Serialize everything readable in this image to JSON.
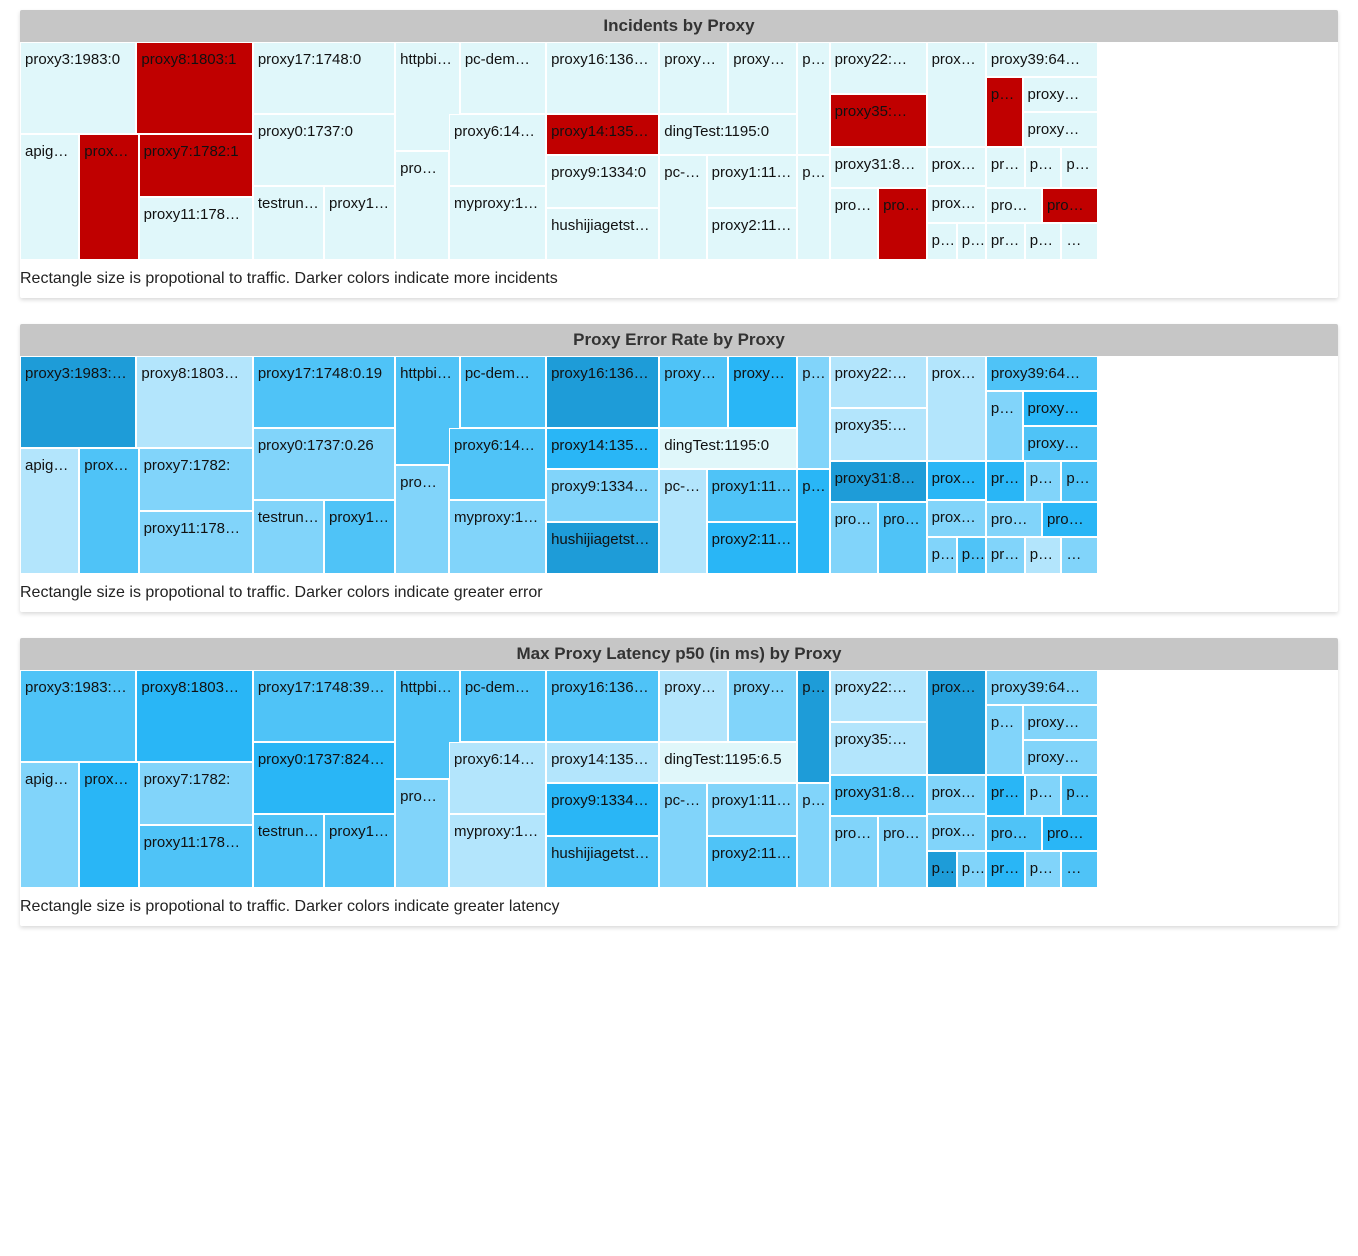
{
  "layoutNodes": [
    {
      "id": "proxy3",
      "l": 0,
      "t": 0,
      "w": 0.108,
      "h": 0.42,
      "text": "proxy3:1983:"
    },
    {
      "id": "proxy8",
      "l": 0.108,
      "t": 0,
      "w": 0.108,
      "h": 0.42,
      "text": "proxy8:1803:"
    },
    {
      "id": "apige",
      "l": 0,
      "t": 0.42,
      "w": 0.055,
      "h": 0.58,
      "text": "apige…"
    },
    {
      "id": "proxyA",
      "l": 0.055,
      "t": 0.42,
      "w": 0.055,
      "h": 0.58,
      "text": "proxy…"
    },
    {
      "id": "proxy7",
      "l": 0.11,
      "t": 0.42,
      "w": 0.106,
      "h": 0.29,
      "text": "proxy7:1782:"
    },
    {
      "id": "proxy11",
      "l": 0.11,
      "t": 0.71,
      "w": 0.106,
      "h": 0.29,
      "text": "proxy11:178…"
    },
    {
      "id": "proxy17",
      "l": 0.216,
      "t": 0,
      "w": 0.132,
      "h": 0.33,
      "text": "proxy17:1748:"
    },
    {
      "id": "proxy0",
      "l": 0.216,
      "t": 0.33,
      "w": 0.132,
      "h": 0.33,
      "text": "proxy0:1737:"
    },
    {
      "id": "testrun",
      "l": 0.216,
      "t": 0.66,
      "w": 0.066,
      "h": 0.34,
      "text": "testrun:…"
    },
    {
      "id": "proxy1a",
      "l": 0.282,
      "t": 0.66,
      "w": 0.066,
      "h": 0.34,
      "text": "proxy1…"
    },
    {
      "id": "httpbin",
      "l": 0.348,
      "t": 0,
      "w": 0.06,
      "h": 0.5,
      "text": "httpbin:1…"
    },
    {
      "id": "proxB",
      "l": 0.348,
      "t": 0.5,
      "w": 0.05,
      "h": 0.5,
      "text": "prox…"
    },
    {
      "id": "pcdem",
      "l": 0.408,
      "t": 0,
      "w": 0.08,
      "h": 0.33,
      "text": "pc-dem…"
    },
    {
      "id": "proxy6",
      "l": 0.398,
      "t": 0.33,
      "w": 0.09,
      "h": 0.33,
      "text": "proxy6:145…"
    },
    {
      "id": "myproxy",
      "l": 0.398,
      "t": 0.66,
      "w": 0.09,
      "h": 0.34,
      "text": "myproxy:14…"
    },
    {
      "id": "proxy16",
      "l": 0.488,
      "t": 0,
      "w": 0.105,
      "h": 0.33,
      "text": "proxy16:136…"
    },
    {
      "id": "proxy14",
      "l": 0.488,
      "t": 0.33,
      "w": 0.105,
      "h": 0.19,
      "text": "proxy14:135…"
    },
    {
      "id": "proxy9",
      "l": 0.488,
      "t": 0.52,
      "w": 0.105,
      "h": 0.24,
      "text": "proxy9:1334:"
    },
    {
      "id": "hushi",
      "l": 0.488,
      "t": 0.76,
      "w": 0.105,
      "h": 0.24,
      "text": "hushijiagetst…"
    },
    {
      "id": "proxy1b",
      "l": 0.593,
      "t": 0,
      "w": 0.064,
      "h": 0.33,
      "text": "proxy1…"
    },
    {
      "id": "proxy1c",
      "l": 0.657,
      "t": 0,
      "w": 0.064,
      "h": 0.33,
      "text": "proxy1…"
    },
    {
      "id": "dingTest",
      "l": 0.593,
      "t": 0.33,
      "w": 0.128,
      "h": 0.19,
      "text": "dingTest:1195:0"
    },
    {
      "id": "pcd",
      "l": 0.593,
      "t": 0.52,
      "w": 0.044,
      "h": 0.48,
      "text": "pc-d…"
    },
    {
      "id": "proxy1d",
      "l": 0.637,
      "t": 0.52,
      "w": 0.084,
      "h": 0.24,
      "text": "proxy1:11…"
    },
    {
      "id": "proxy2",
      "l": 0.637,
      "t": 0.76,
      "w": 0.084,
      "h": 0.24,
      "text": "proxy2:11…"
    },
    {
      "id": "proM",
      "l": 0.721,
      "t": 0,
      "w": 0.03,
      "h": 0.52,
      "text": "pro…"
    },
    {
      "id": "prN",
      "l": 0.721,
      "t": 0.52,
      "w": 0.03,
      "h": 0.48,
      "text": "pr…"
    },
    {
      "id": "proxy22",
      "l": 0.751,
      "t": 0,
      "w": 0.09,
      "h": 0.24,
      "text": "proxy22:…"
    },
    {
      "id": "proxy35",
      "l": 0.751,
      "t": 0.24,
      "w": 0.09,
      "h": 0.24,
      "text": "proxy35:…"
    },
    {
      "id": "proxy31",
      "l": 0.751,
      "t": 0.48,
      "w": 0.09,
      "h": 0.19,
      "text": "proxy31:8…"
    },
    {
      "id": "proxE",
      "l": 0.751,
      "t": 0.67,
      "w": 0.045,
      "h": 0.33,
      "text": "prox…"
    },
    {
      "id": "proF",
      "l": 0.796,
      "t": 0.67,
      "w": 0.045,
      "h": 0.33,
      "text": "pro…"
    },
    {
      "id": "proxyC",
      "l": 0.841,
      "t": 0,
      "w": 0.055,
      "h": 0.48,
      "text": "proxy…"
    },
    {
      "id": "proxy2b",
      "l": 0.841,
      "t": 0.48,
      "w": 0.055,
      "h": 0.18,
      "text": "proxy2…"
    },
    {
      "id": "proxy3b",
      "l": 0.841,
      "t": 0.66,
      "w": 0.055,
      "h": 0.17,
      "text": "proxy3…"
    },
    {
      "id": "proG",
      "l": 0.841,
      "t": 0.83,
      "w": 0.028,
      "h": 0.17,
      "text": "pro…"
    },
    {
      "id": "proH",
      "l": 0.869,
      "t": 0.83,
      "w": 0.027,
      "h": 0.17,
      "text": "pro…"
    },
    {
      "id": "proxy39",
      "l": 0.896,
      "t": 0,
      "w": 0.104,
      "h": 0.16,
      "text": "proxy39:64…"
    },
    {
      "id": "prI",
      "l": 0.896,
      "t": 0.16,
      "w": 0.034,
      "h": 0.32,
      "text": "pr…"
    },
    {
      "id": "proxyD",
      "l": 0.93,
      "t": 0.16,
      "w": 0.07,
      "h": 0.16,
      "text": "proxy…"
    },
    {
      "id": "proxyE",
      "l": 0.93,
      "t": 0.32,
      "w": 0.07,
      "h": 0.16,
      "text": "proxy…"
    },
    {
      "id": "proJ",
      "l": 0.896,
      "t": 0.48,
      "w": 0.036,
      "h": 0.19,
      "text": "pro…"
    },
    {
      "id": "proK",
      "l": 0.932,
      "t": 0.48,
      "w": 0.034,
      "h": 0.19,
      "text": "pro…"
    },
    {
      "id": "proL",
      "l": 0.966,
      "t": 0.48,
      "w": 0.034,
      "h": 0.19,
      "text": "pro…"
    },
    {
      "id": "proP",
      "l": 0.896,
      "t": 0.67,
      "w": 0.052,
      "h": 0.16,
      "text": "pro…"
    },
    {
      "id": "proQ",
      "l": 0.948,
      "t": 0.67,
      "w": 0.052,
      "h": 0.16,
      "text": "pro…"
    },
    {
      "id": "proR",
      "l": 0.896,
      "t": 0.83,
      "w": 0.036,
      "h": 0.17,
      "text": "pro…"
    },
    {
      "id": "pS",
      "l": 0.932,
      "t": 0.83,
      "w": 0.034,
      "h": 0.17,
      "text": "p. …"
    },
    {
      "id": "pT",
      "l": 0.966,
      "t": 0.83,
      "w": 0.034,
      "h": 0.17,
      "text": "…"
    }
  ],
  "colorScales": {
    "blue0": "#e0f7fa",
    "blue1": "#b3e5fc",
    "blue2": "#81d4fa",
    "blue3": "#4fc3f7",
    "blue4": "#29b6f6",
    "blue5": "#1e9cd8",
    "red": "#c00000"
  },
  "charts": [
    {
      "title": "Incidents by Proxy",
      "caption": "Rectangle size is propotional to traffic. Darker colors indicate more incidents",
      "baseColor": "blue0",
      "textOverrides": {
        "proxy3": "proxy3:1983:0",
        "proxy8": "proxy8:1803:1",
        "proxy7": "proxy7:1782:1",
        "proxy17": "proxy17:1748:0",
        "proxy0": "proxy0:1737:0",
        "proxy9": "proxy9:1334:0",
        "proxy14": "proxy14:135…"
      },
      "colorOverrides": {
        "proxy8": "red",
        "proxy7": "red",
        "proxyA": "red",
        "proxy14": "red",
        "proxy35": "red",
        "prI": "red",
        "proF": "red",
        "proQ": "red"
      }
    },
    {
      "title": "Proxy Error Rate by Proxy",
      "caption": "Rectangle size is propotional to traffic. Darker colors indicate greater error",
      "baseColor": "blue2",
      "textOverrides": {
        "proxy3": "proxy3:1983:…",
        "proxy8": "proxy8:1803…",
        "proxy17": "proxy17:1748:0.19",
        "proxy0": "proxy0:1737:0.26",
        "proxy9": "proxy9:1334…",
        "dingTest": "dingTest:1195:0"
      },
      "colorOverrides": {
        "proxy3": "blue5",
        "proxy8": "blue1",
        "apige": "blue1",
        "proxyA": "blue3",
        "proxy7": "blue2",
        "proxy11": "blue2",
        "proxy17": "blue3",
        "proxy0": "blue2",
        "testrun": "blue2",
        "proxy1a": "blue3",
        "httpbin": "blue3",
        "proxB": "blue2",
        "pcdem": "blue3",
        "proxy6": "blue3",
        "myproxy": "blue2",
        "proxy16": "blue5",
        "proxy14": "blue4",
        "proxy9": "blue2",
        "hushi": "blue5",
        "proxy1b": "blue3",
        "proxy1c": "blue4",
        "dingTest": "blue0",
        "pcd": "blue1",
        "proxy1d": "blue3",
        "proxy2": "blue4",
        "proM": "blue2",
        "prN": "blue4",
        "proxy22": "blue1",
        "proxy35": "blue1",
        "proxy31": "blue5",
        "proE": "blue2",
        "proF": "blue3",
        "proxyC": "blue1",
        "proxy2b": "blue4",
        "proxy3b": "blue2",
        "proG": "blue2",
        "proH": "blue3",
        "proxy39": "blue3",
        "prI": "blue2",
        "proxyD": "blue4",
        "proxyE": "blue3",
        "proJ": "blue4",
        "proK": "blue2",
        "proL": "blue3",
        "proP": "blue2",
        "proQ": "blue4",
        "proR": "blue2",
        "pS": "blue1",
        "pT": "blue2"
      }
    },
    {
      "title": "Max Proxy Latency p50 (in ms) by Proxy",
      "caption": "Rectangle size is propotional to traffic. Darker colors indicate greater latency",
      "baseColor": "blue2",
      "textOverrides": {
        "proxy3": "proxy3:1983:…",
        "proxy8": "proxy8:1803…",
        "proxy17": "proxy17:1748:39…",
        "proxy0": "proxy0:1737:824…",
        "proxy9": "proxy9:1334…",
        "dingTest": "dingTest:1195:6.5"
      },
      "colorOverrides": {
        "proxy3": "blue3",
        "proxy8": "blue4",
        "apige": "blue2",
        "proxyA": "blue4",
        "proxy7": "blue2",
        "proxy11": "blue3",
        "proxy17": "blue3",
        "proxy0": "blue4",
        "testrun": "blue3",
        "proxy1a": "blue3",
        "httpbin": "blue3",
        "proxB": "blue2",
        "pcdem": "blue3",
        "proxy6": "blue1",
        "myproxy": "blue1",
        "proxy16": "blue3",
        "proxy14": "blue1",
        "proxy9": "blue4",
        "hushi": "blue3",
        "proxy1b": "blue1",
        "proxy1c": "blue2",
        "dingTest": "blue0",
        "pcd": "blue2",
        "proxy1d": "blue2",
        "proxy2": "blue3",
        "proM": "blue5",
        "prN": "blue2",
        "proxy22": "blue1",
        "proxy35": "blue1",
        "proxy31": "blue3",
        "proE": "blue2",
        "proF": "blue2",
        "proxyC": "blue5",
        "proxy2b": "blue2",
        "proxy3b": "blue2",
        "proG": "blue5",
        "proH": "blue2",
        "proxy39": "blue2",
        "prI": "blue2",
        "proxyD": "blue2",
        "proxyE": "blue2",
        "proJ": "blue4",
        "proK": "blue2",
        "proL": "blue3",
        "proP": "blue3",
        "proQ": "blue4",
        "proR": "blue4",
        "pS": "blue2",
        "pT": "blue3"
      }
    }
  ]
}
